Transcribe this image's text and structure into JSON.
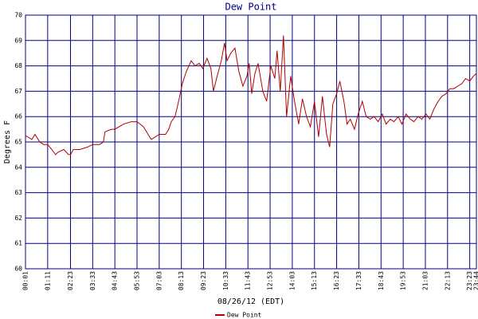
{
  "chart_data": {
    "type": "line",
    "title": "Dew Point",
    "x_label": "08/26/12 (EDT)",
    "y_label": "Degrees F",
    "x": [
      "00:01",
      "00:21",
      "00:31",
      "00:46",
      "00:58",
      "01:11",
      "01:24",
      "01:36",
      "01:44",
      "02:02",
      "02:17",
      "02:23",
      "02:32",
      "02:52",
      "03:17",
      "03:33",
      "03:55",
      "04:07",
      "04:12",
      "04:32",
      "04:43",
      "05:10",
      "05:35",
      "05:53",
      "06:13",
      "06:28",
      "06:38",
      "06:51",
      "07:03",
      "07:23",
      "07:33",
      "07:41",
      "07:53",
      "08:06",
      "08:16",
      "08:29",
      "08:44",
      "08:56",
      "09:09",
      "09:21",
      "09:34",
      "09:46",
      "09:54",
      "10:04",
      "10:19",
      "10:29",
      "10:37",
      "10:49",
      "11:02",
      "11:14",
      "11:27",
      "11:40",
      "11:47",
      "11:55",
      "12:05",
      "12:15",
      "12:30",
      "12:42",
      "12:55",
      "13:08",
      "13:15",
      "13:25",
      "13:35",
      "13:45",
      "13:58",
      "14:10",
      "14:23",
      "14:35",
      "14:48",
      "15:00",
      "15:13",
      "15:26",
      "15:38",
      "15:51",
      "16:01",
      "16:11",
      "16:23",
      "16:33",
      "16:46",
      "16:56",
      "17:06",
      "17:19",
      "17:31",
      "17:44",
      "17:56",
      "18:09",
      "18:21",
      "18:34",
      "18:47",
      "18:59",
      "19:12",
      "19:24",
      "19:37",
      "19:49",
      "20:02",
      "20:15",
      "20:27",
      "20:40",
      "20:52",
      "21:05",
      "21:17",
      "21:30",
      "21:43",
      "21:55",
      "22:08",
      "22:20",
      "22:33",
      "22:45",
      "22:58",
      "23:10",
      "23:23",
      "23:35",
      "23:44"
    ],
    "series": [
      {
        "name": "Dew Point",
        "color": "#b00000",
        "values": [
          65.25,
          65.1,
          65.3,
          65.0,
          64.9,
          64.9,
          64.7,
          64.5,
          64.6,
          64.7,
          64.5,
          64.5,
          64.7,
          64.7,
          64.8,
          64.9,
          64.9,
          65.0,
          65.4,
          65.5,
          65.5,
          65.7,
          65.8,
          65.8,
          65.6,
          65.3,
          65.1,
          65.2,
          65.3,
          65.3,
          65.5,
          65.8,
          66.0,
          66.7,
          67.3,
          67.8,
          68.2,
          68.0,
          68.1,
          67.9,
          68.3,
          67.9,
          67.0,
          67.5,
          68.2,
          68.9,
          68.2,
          68.5,
          68.7,
          67.8,
          67.2,
          67.6,
          68.1,
          66.9,
          67.7,
          68.1,
          67.0,
          66.6,
          68.0,
          67.5,
          68.6,
          67.0,
          69.2,
          66.0,
          67.6,
          66.6,
          65.7,
          66.7,
          66.0,
          65.6,
          66.6,
          65.2,
          66.8,
          65.3,
          64.8,
          66.5,
          66.9,
          67.4,
          66.6,
          65.7,
          65.9,
          65.5,
          66.1,
          66.6,
          66.0,
          65.9,
          66.0,
          65.8,
          66.1,
          65.7,
          65.9,
          65.8,
          66.0,
          65.7,
          66.1,
          65.9,
          65.8,
          66.0,
          65.9,
          66.1,
          65.9,
          66.3,
          66.6,
          66.8,
          66.9,
          67.1,
          67.1,
          67.2,
          67.3,
          67.5,
          67.4,
          67.6,
          67.7
        ]
      }
    ],
    "xlim": [
      "00:01",
      "23:44"
    ],
    "xticks": [
      "00:01",
      "01:11",
      "02:23",
      "03:33",
      "04:43",
      "05:53",
      "07:03",
      "08:13",
      "09:23",
      "10:33",
      "11:43",
      "12:53",
      "14:03",
      "15:13",
      "16:23",
      "17:33",
      "18:43",
      "19:53",
      "21:03",
      "22:13",
      "23:23",
      "23:44"
    ],
    "ylim": [
      60,
      70
    ],
    "yticks": [
      60,
      61,
      62,
      63,
      64,
      65,
      66,
      67,
      68,
      69,
      70
    ],
    "grid": true
  }
}
